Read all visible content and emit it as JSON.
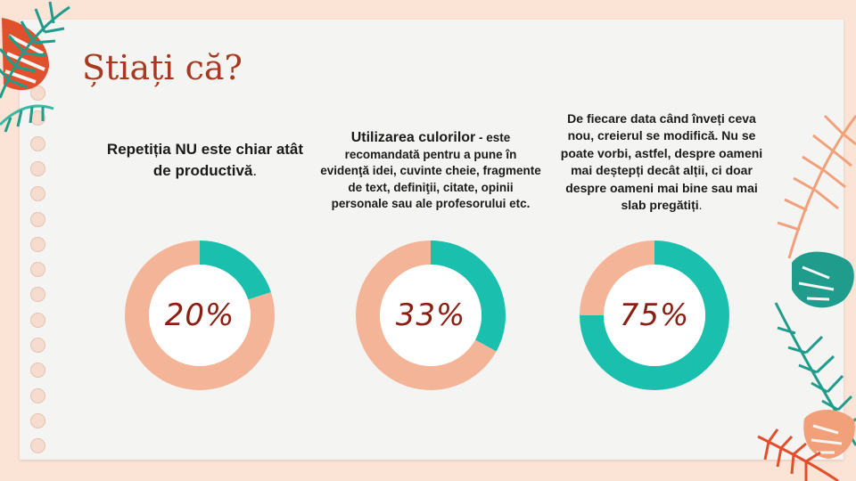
{
  "slide": {
    "title": "Știați că?",
    "cards": [
      {
        "text_bold": "Repetiția NU este chiar atât de productivă",
        "text_rest": "."
      },
      {
        "text_bold": "Utilizarea culorilor",
        "text_rest": " - este recomandată pentru a pune în evidenţă idei, cuvinte cheie, fragmente de text, definiţii, citate, opinii personale sau ale profesorului etc."
      },
      {
        "text_bold": "De fiecare data când înveți ceva nou, creierul se modifică. Nu se poate vorbi, astfel, despre oameni mai deștepți decât alții, ci doar despre oameni mai bine sau mai slab pregătiți",
        "text_rest": "."
      }
    ]
  },
  "chart_data": [
    {
      "type": "pie",
      "label": "20%",
      "values": [
        20,
        80
      ],
      "colors": [
        "#1abfae",
        "#f4b497"
      ]
    },
    {
      "type": "pie",
      "label": "33%",
      "values": [
        33,
        67
      ],
      "colors": [
        "#1abfae",
        "#f4b497"
      ]
    },
    {
      "type": "pie",
      "label": "75%",
      "values": [
        75,
        25
      ],
      "colors": [
        "#1abfae",
        "#f4b497"
      ]
    }
  ],
  "colors": {
    "background": "#fbe3d6",
    "paper": "#f4f4f2",
    "title": "#a8381f",
    "teal": "#1abfae",
    "peach": "#f4b497",
    "percent_text": "#8b1e12",
    "leaf_red": "#e0502c",
    "leaf_teal": "#1f9c8c"
  },
  "decorations": {
    "icons": [
      "monstera-leaf-icon",
      "palm-leaf-icon"
    ]
  }
}
